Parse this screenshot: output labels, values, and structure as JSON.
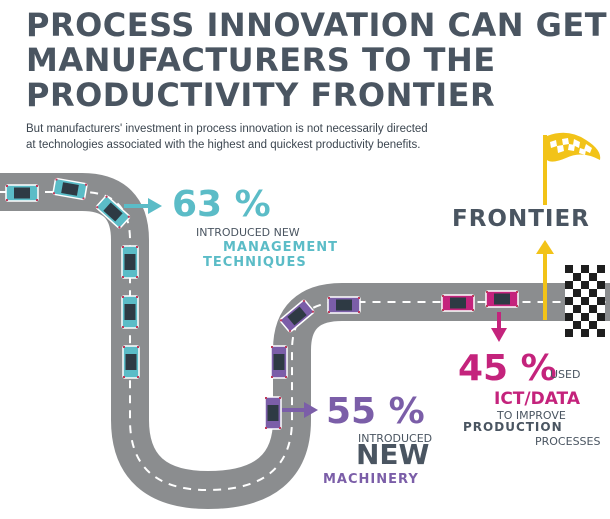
{
  "title_lines": [
    "PROCESS INNOVATION CAN GET",
    "MANUFACTURERS TO THE",
    "PRODUCTIVITY FRONTIER"
  ],
  "subtitle_lines": [
    "But manufacturers' investment in process innovation is not necessarily directed",
    "at technologies associated with the highest and quickest productivity benefits."
  ],
  "stats": {
    "management": {
      "value": "63 %",
      "line1": "INTRODUCED NEW",
      "line2": "MANAGEMENT",
      "line3": "TECHNIQUES"
    },
    "machinery": {
      "value": "55 %",
      "line1": "INTRODUCED",
      "line2": "NEW",
      "line3": "MACHINERY"
    },
    "ict": {
      "value": "45 %",
      "used": "USED",
      "line2": "ICT/DATA",
      "line3": "TO IMPROVE",
      "line4": "PRODUCTION",
      "line5": "PROCESSES"
    }
  },
  "frontier_label": "FRONTIER",
  "colors": {
    "title": "#4a5561",
    "road": "#8b8d8f",
    "teal": "#5bbcc7",
    "purple": "#7b5ea8",
    "magenta": "#c4237c",
    "flag": "#f2c318",
    "arrow_yellow": "#f2c318",
    "car_outline": "#c0395a"
  }
}
